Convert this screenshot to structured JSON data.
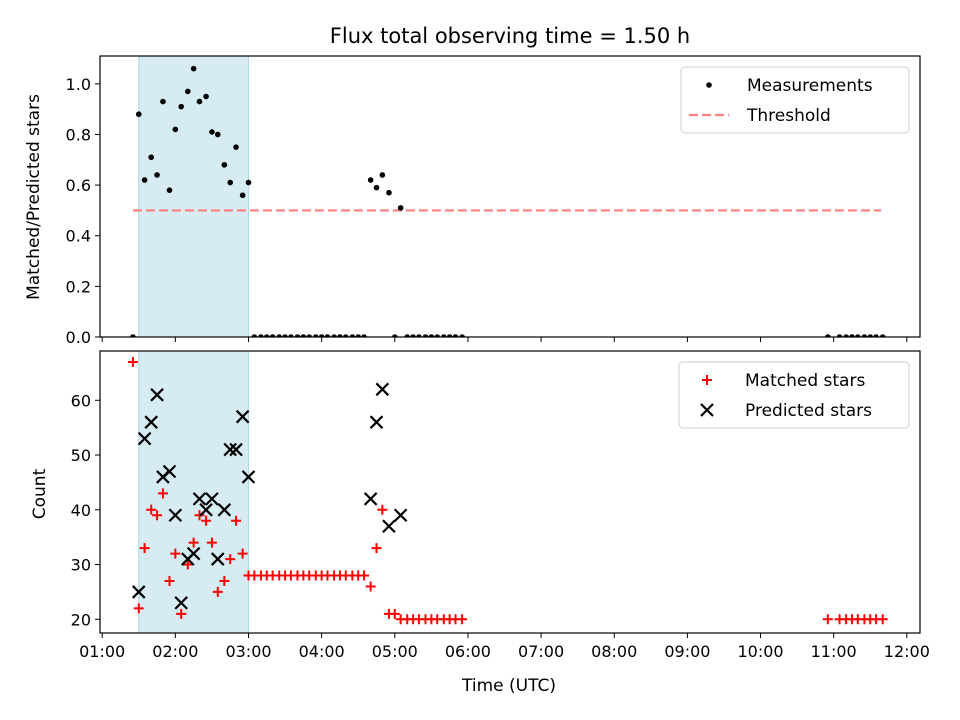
{
  "figure": {
    "title": "Flux total observing time = 1.50 h",
    "xlabel": "Time (UTC)",
    "x_ticks": [
      "01:00",
      "02:00",
      "03:00",
      "04:00",
      "05:00",
      "06:00",
      "07:00",
      "08:00",
      "09:00",
      "10:00",
      "11:00",
      "12:00"
    ],
    "x_range_hours": [
      0.97,
      12.18
    ],
    "shaded_interval_hours": [
      1.5,
      3.0
    ],
    "colors": {
      "shade": "#add8e6",
      "threshold": "#ff7f7f",
      "matched": "#ff0000",
      "predicted": "#000000",
      "measure": "#000000"
    }
  },
  "chart_data": [
    {
      "type": "scatter",
      "ylabel": "Matched/Predicted stars",
      "ylim": [
        0,
        1.11
      ],
      "y_ticks": [
        "0.0",
        "0.2",
        "0.4",
        "0.6",
        "0.8",
        "1.0"
      ],
      "legend_position": "top-right",
      "legend": [
        "Measurements",
        "Threshold"
      ],
      "threshold": {
        "name": "Threshold",
        "y": 0.5,
        "x_range": [
          1.42,
          11.65
        ]
      },
      "series": [
        {
          "name": "Measurements",
          "x": [
            1.42,
            1.5,
            1.58,
            1.67,
            1.75,
            1.83,
            1.92,
            2.0,
            2.08,
            2.17,
            2.25,
            2.33,
            2.42,
            2.5,
            2.58,
            2.67,
            2.75,
            2.83,
            2.92,
            3.0,
            3.08,
            3.17,
            3.25,
            3.33,
            3.42,
            3.5,
            3.58,
            3.67,
            3.75,
            3.83,
            3.92,
            4.0,
            4.08,
            4.17,
            4.25,
            4.33,
            4.42,
            4.5,
            4.58,
            4.67,
            4.75,
            4.83,
            4.92,
            5.0,
            5.08,
            5.17,
            5.25,
            5.33,
            5.42,
            5.5,
            5.58,
            5.67,
            5.75,
            5.83,
            5.92,
            10.92,
            11.08,
            11.17,
            11.25,
            11.33,
            11.42,
            11.5,
            11.58,
            11.67
          ],
          "y": [
            0.0,
            0.88,
            0.62,
            0.71,
            0.64,
            0.93,
            0.58,
            0.82,
            0.91,
            0.97,
            1.06,
            0.93,
            0.95,
            0.81,
            0.8,
            0.68,
            0.61,
            0.75,
            0.56,
            0.61,
            0.0,
            0.0,
            0.0,
            0.0,
            0.0,
            0.0,
            0.0,
            0.0,
            0.0,
            0.0,
            0.0,
            0.0,
            0.0,
            0.0,
            0.0,
            0.0,
            0.0,
            0.0,
            0.0,
            0.62,
            0.59,
            0.64,
            0.57,
            0.0,
            0.51,
            0.0,
            0.0,
            0.0,
            0.0,
            0.0,
            0.0,
            0.0,
            0.0,
            0.0,
            0.0,
            0.0,
            0.0,
            0.0,
            0.0,
            0.0,
            0.0,
            0.0,
            0.0,
            0.0
          ]
        }
      ]
    },
    {
      "type": "scatter",
      "ylabel": "Count",
      "ylim": [
        17.5,
        69.0
      ],
      "y_ticks": [
        "20",
        "30",
        "40",
        "50",
        "60"
      ],
      "legend_position": "top-right",
      "legend": [
        "Matched stars",
        "Predicted stars"
      ],
      "series": [
        {
          "name": "Matched stars",
          "x": [
            1.42,
            1.5,
            1.58,
            1.67,
            1.75,
            1.83,
            1.92,
            2.0,
            2.08,
            2.17,
            2.25,
            2.33,
            2.42,
            2.5,
            2.58,
            2.67,
            2.75,
            2.83,
            2.92,
            3.0,
            3.08,
            3.17,
            3.25,
            3.33,
            3.42,
            3.5,
            3.58,
            3.67,
            3.75,
            3.83,
            3.92,
            4.0,
            4.08,
            4.17,
            4.25,
            4.33,
            4.42,
            4.5,
            4.58,
            4.67,
            4.75,
            4.83,
            4.92,
            5.0,
            5.08,
            5.17,
            5.25,
            5.33,
            5.42,
            5.5,
            5.58,
            5.67,
            5.75,
            5.83,
            5.92,
            10.92,
            11.08,
            11.17,
            11.25,
            11.33,
            11.42,
            11.5,
            11.58,
            11.67
          ],
          "y": [
            67,
            22,
            33,
            40,
            39,
            43,
            27,
            32,
            21,
            30,
            34,
            39,
            38,
            34,
            25,
            27,
            31,
            38,
            32,
            28,
            28,
            28,
            28,
            28,
            28,
            28,
            28,
            28,
            28,
            28,
            28,
            28,
            28,
            28,
            28,
            28,
            28,
            28,
            28,
            26,
            33,
            40,
            21,
            21,
            20,
            20,
            20,
            20,
            20,
            20,
            20,
            20,
            20,
            20,
            20,
            20,
            20,
            20,
            20,
            20,
            20,
            20,
            20,
            20
          ]
        },
        {
          "name": "Predicted stars",
          "x": [
            1.5,
            1.58,
            1.67,
            1.75,
            1.83,
            1.92,
            2.0,
            2.08,
            2.17,
            2.25,
            2.33,
            2.42,
            2.5,
            2.58,
            2.67,
            2.75,
            2.83,
            2.92,
            3.0,
            4.67,
            4.75,
            4.83,
            4.92,
            5.08
          ],
          "y": [
            25,
            53,
            56,
            61,
            46,
            47,
            39,
            23,
            31,
            32,
            42,
            40,
            42,
            31,
            40,
            51,
            51,
            57,
            46,
            42,
            56,
            62,
            37,
            39
          ]
        }
      ]
    }
  ]
}
